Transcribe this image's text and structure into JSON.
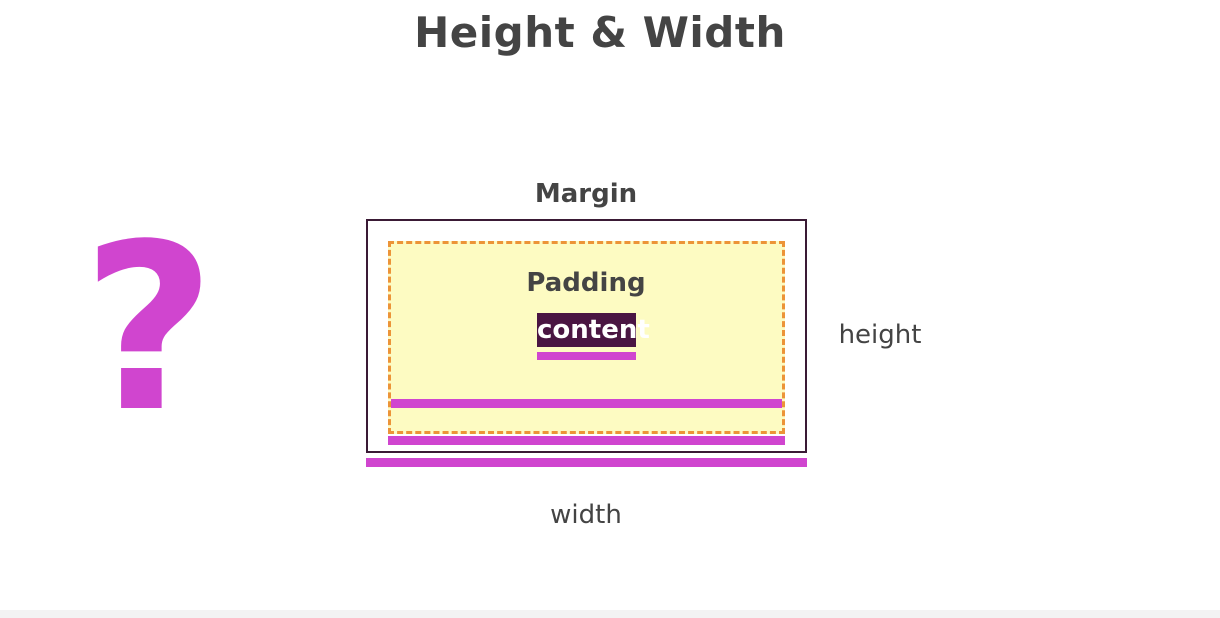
{
  "title": "Height & Width",
  "question_mark": "?",
  "diagram": {
    "margin_label": "Margin",
    "padding_label": "Padding",
    "content_label": "content",
    "height_label": "height",
    "width_label": "width"
  },
  "colors": {
    "accent": "#d045cf",
    "padding_fill": "#fdfbc2",
    "padding_border": "#ec9438",
    "content_fill": "#4a1542",
    "margin_border": "#3a1a35",
    "text": "#444444"
  }
}
